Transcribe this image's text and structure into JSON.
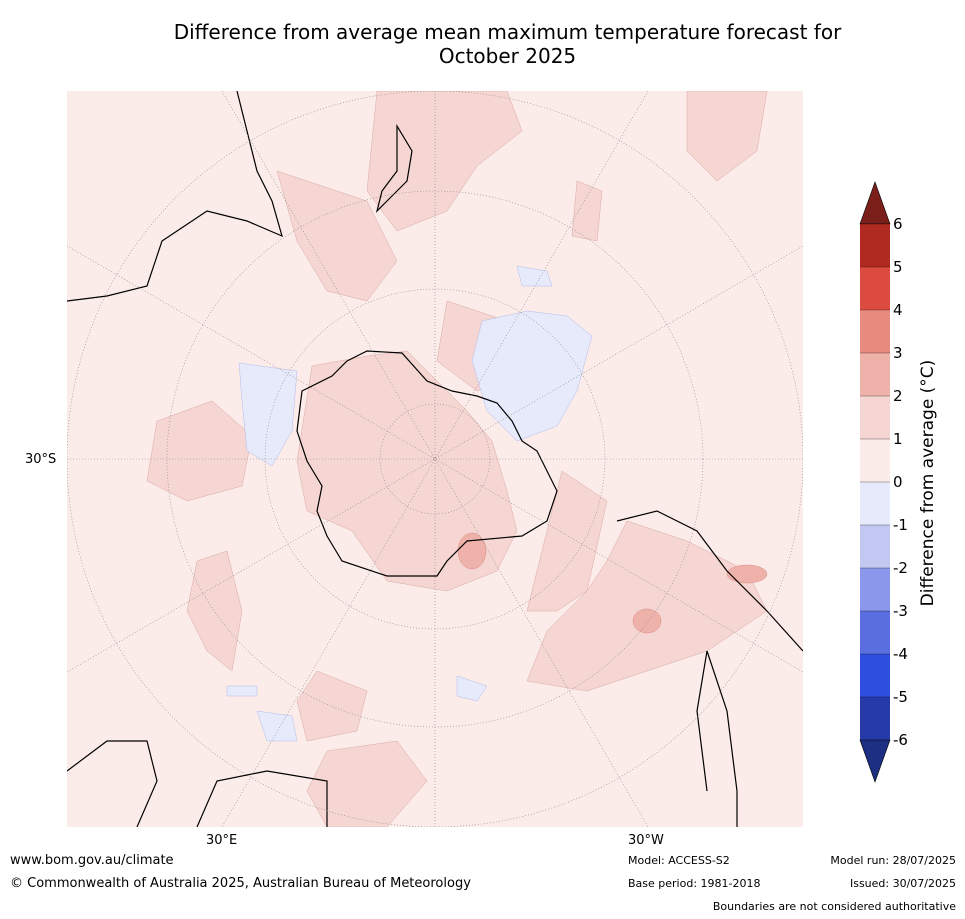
{
  "title_line1": "Difference from average mean maximum temperature forecast for",
  "title_line2": "October 2025",
  "map": {
    "lat_label": "30°S",
    "lon_labels": [
      "30°E",
      "30°W"
    ]
  },
  "colorbar": {
    "label": "Difference from average (°C)",
    "ticks": [
      "6",
      "5",
      "4",
      "3",
      "2",
      "1",
      "0",
      "-1",
      "-2",
      "-3",
      "-4",
      "-5",
      "-6"
    ],
    "colors_top_to_bottom": [
      "#7b1f1a",
      "#b02a22",
      "#db4b3f",
      "#e98a7f",
      "#efb2aa",
      "#f5d6d2",
      "#fbecea",
      "#e7eafb",
      "#c2c8f2",
      "#8a97ea",
      "#5a6ee0",
      "#2f4fe0",
      "#263aa8",
      "#1c2f82"
    ]
  },
  "footer": {
    "website": "www.bom.gov.au/climate",
    "copyright": "© Commonwealth of Australia 2025, Australian Bureau of Meteorology",
    "model": "Model: ACCESS-S2",
    "base_period": "Base period: 1981-2018",
    "model_run": "Model run: 28/07/2025",
    "issued": "Issued: 30/07/2025",
    "disclaimer": "Boundaries are not considered authoritative"
  }
}
